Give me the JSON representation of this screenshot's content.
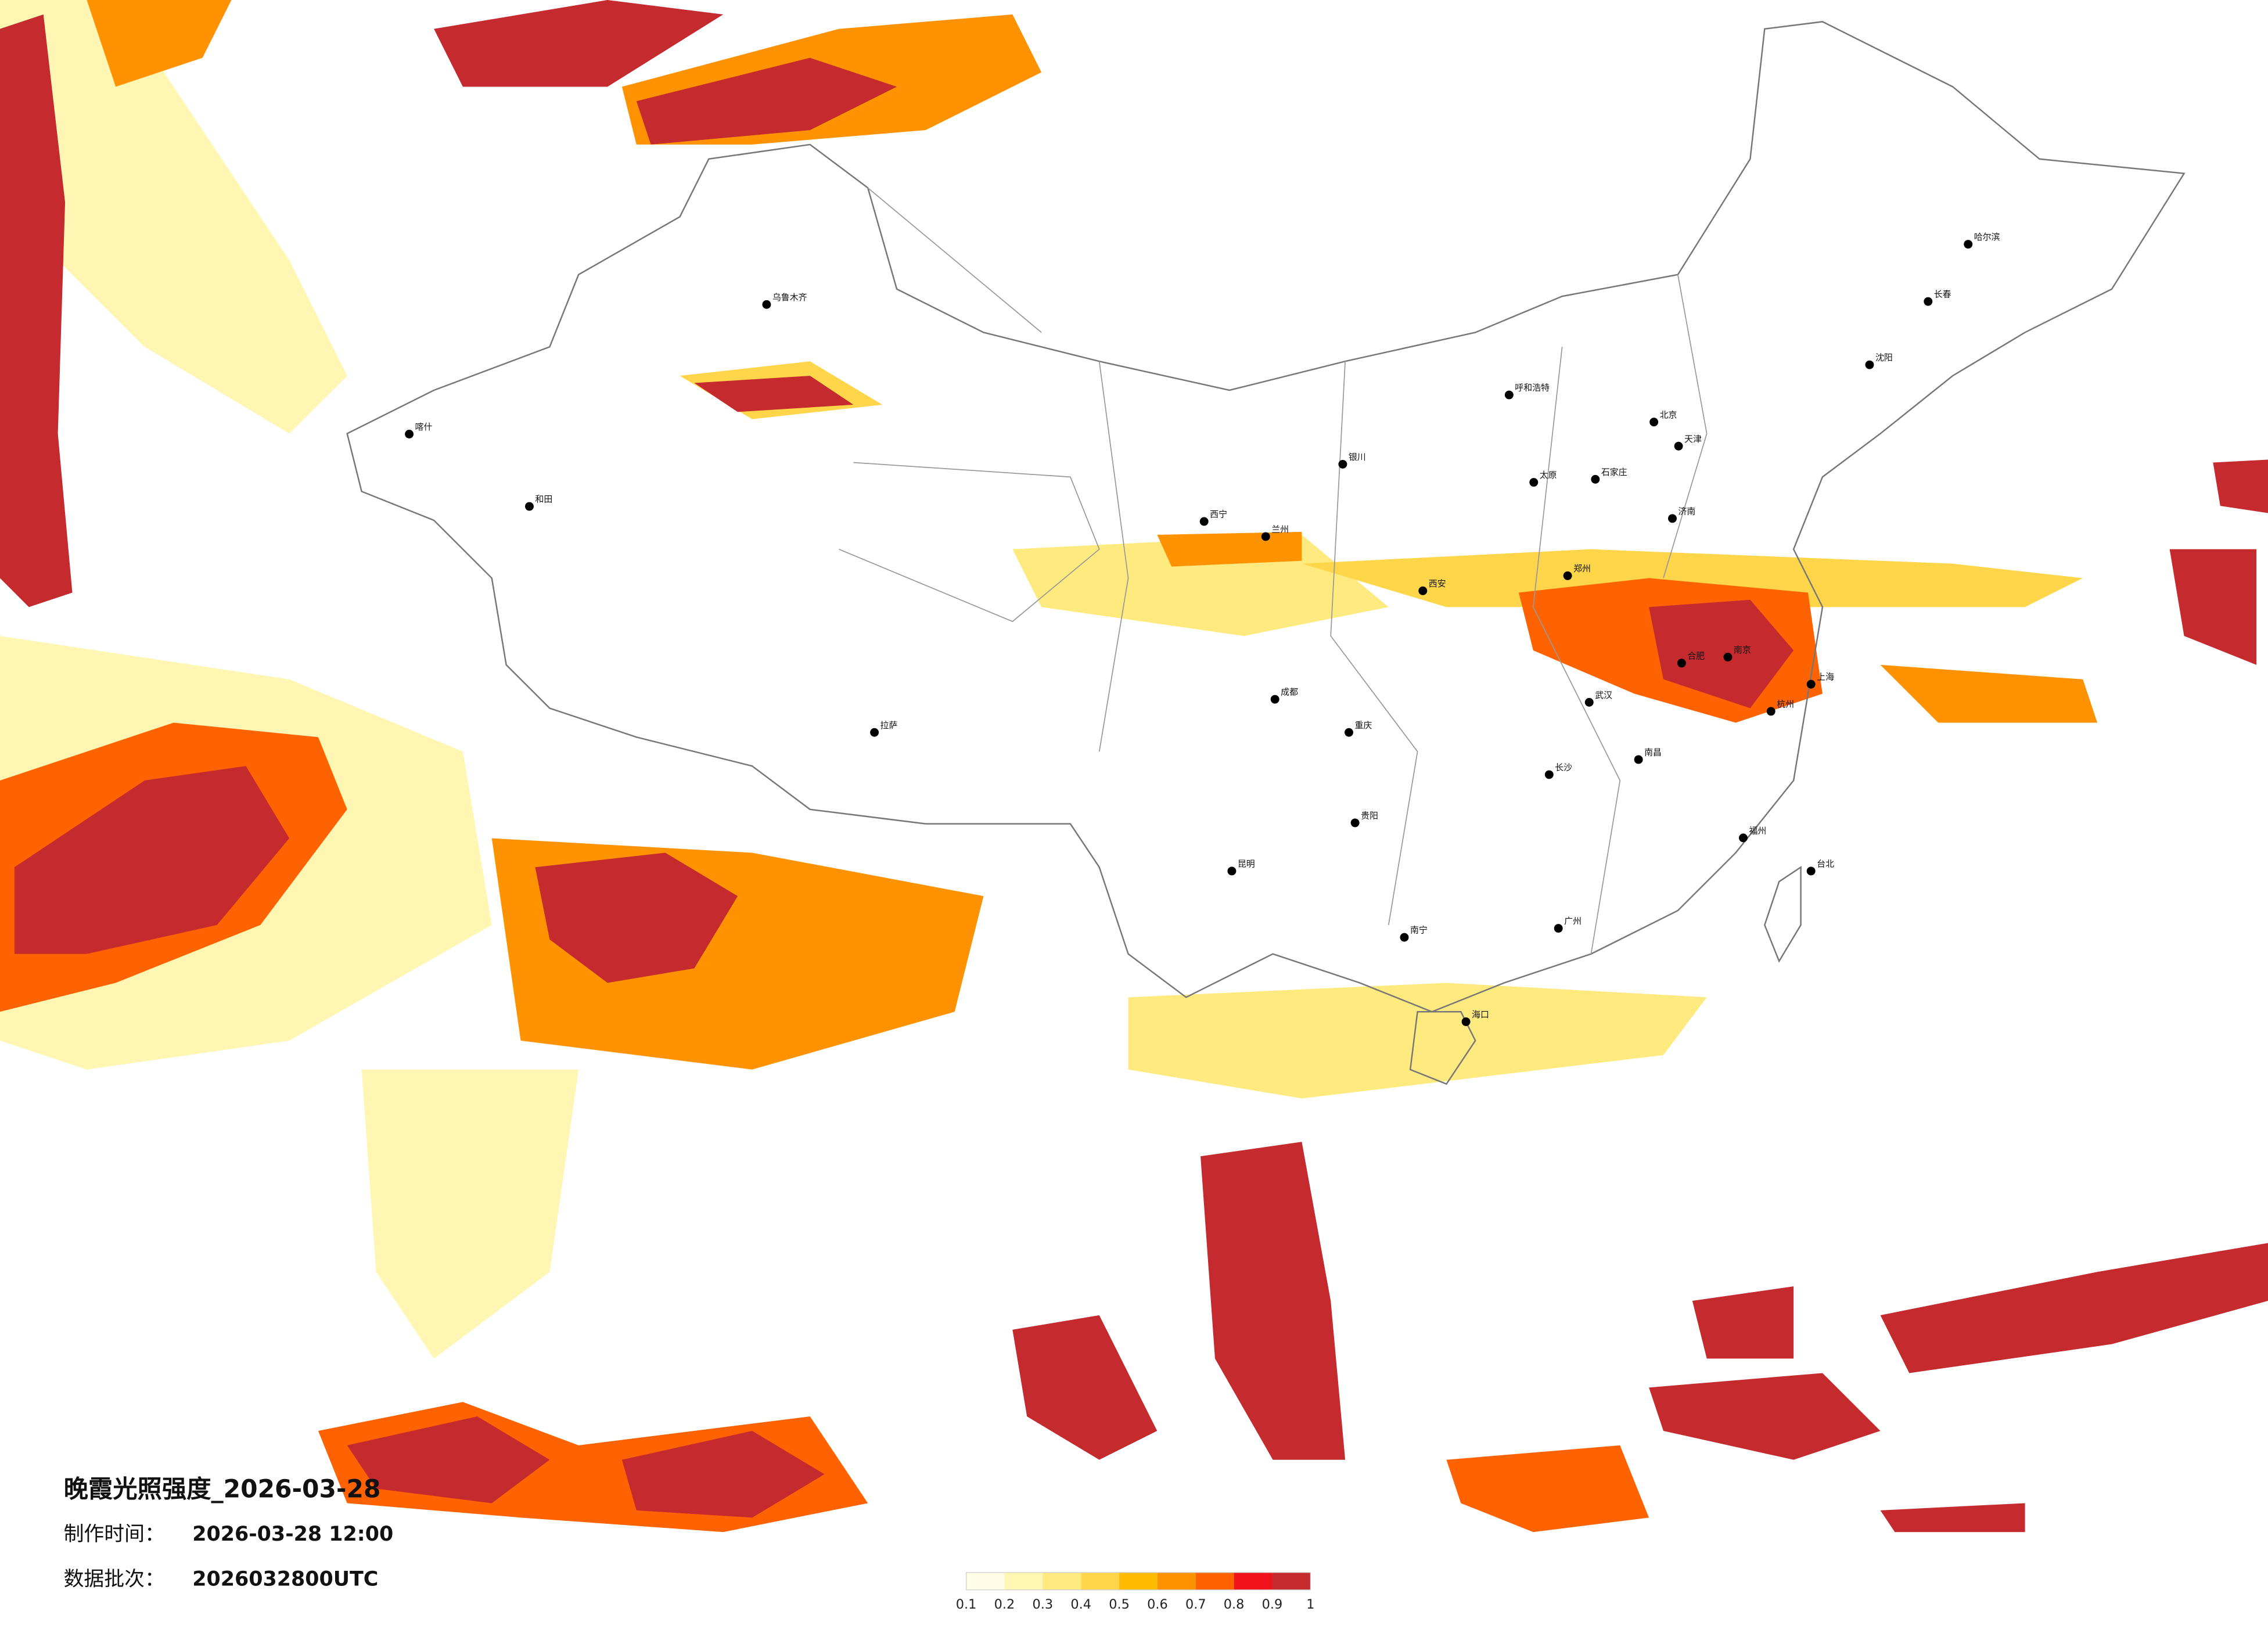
{
  "header": {
    "title": "晚霞光照强度_2026-03-28",
    "made_label": "制作时间：",
    "made_time": "2026-03-28 12:00",
    "batch_label": "数据批次：",
    "batch": "2026032800UTC"
  },
  "legend": {
    "ticks": [
      0.1,
      0.2,
      0.3,
      0.4,
      0.5,
      0.6,
      0.7,
      0.8,
      0.9,
      1
    ],
    "colors": [
      "#fffde6",
      "#fff6b3",
      "#ffea80",
      "#ffd54a",
      "#ffbb00",
      "#ff9200",
      "#ff6200",
      "#f0141a",
      "#c42a2e"
    ]
  },
  "cities": [
    {
      "name": "乌鲁木齐",
      "lon": 87.6,
      "lat": 43.8
    },
    {
      "name": "喀什",
      "lon": 76.0,
      "lat": 39.5
    },
    {
      "name": "和田",
      "lon": 79.9,
      "lat": 37.1
    },
    {
      "name": "拉萨",
      "lon": 91.1,
      "lat": 29.6
    },
    {
      "name": "西宁",
      "lon": 101.8,
      "lat": 36.6
    },
    {
      "name": "兰州",
      "lon": 103.8,
      "lat": 36.1
    },
    {
      "name": "银川",
      "lon": 106.3,
      "lat": 38.5
    },
    {
      "name": "呼和浩特",
      "lon": 111.7,
      "lat": 40.8
    },
    {
      "name": "北京",
      "lon": 116.4,
      "lat": 39.9
    },
    {
      "name": "天津",
      "lon": 117.2,
      "lat": 39.1
    },
    {
      "name": "石家庄",
      "lon": 114.5,
      "lat": 38.0
    },
    {
      "name": "太原",
      "lon": 112.5,
      "lat": 37.9
    },
    {
      "name": "济南",
      "lon": 117.0,
      "lat": 36.7
    },
    {
      "name": "郑州",
      "lon": 113.6,
      "lat": 34.8
    },
    {
      "name": "西安",
      "lon": 108.9,
      "lat": 34.3
    },
    {
      "name": "成都",
      "lon": 104.1,
      "lat": 30.7
    },
    {
      "name": "重庆",
      "lon": 106.5,
      "lat": 29.6
    },
    {
      "name": "武汉",
      "lon": 114.3,
      "lat": 30.6
    },
    {
      "name": "合肥",
      "lon": 117.3,
      "lat": 31.9
    },
    {
      "name": "南京",
      "lon": 118.8,
      "lat": 32.1
    },
    {
      "name": "上海",
      "lon": 121.5,
      "lat": 31.2
    },
    {
      "name": "杭州",
      "lon": 120.2,
      "lat": 30.3
    },
    {
      "name": "南昌",
      "lon": 115.9,
      "lat": 28.7
    },
    {
      "name": "长沙",
      "lon": 113.0,
      "lat": 28.2
    },
    {
      "name": "福州",
      "lon": 119.3,
      "lat": 26.1
    },
    {
      "name": "贵阳",
      "lon": 106.7,
      "lat": 26.6
    },
    {
      "name": "昆明",
      "lon": 102.7,
      "lat": 25.0
    },
    {
      "name": "南宁",
      "lon": 108.3,
      "lat": 22.8
    },
    {
      "name": "广州",
      "lon": 113.3,
      "lat": 23.1
    },
    {
      "name": "海口",
      "lon": 110.3,
      "lat": 20.0
    },
    {
      "name": "台北",
      "lon": 121.5,
      "lat": 25.0
    },
    {
      "name": "沈阳",
      "lon": 123.4,
      "lat": 41.8
    },
    {
      "name": "长春",
      "lon": 125.3,
      "lat": 43.9
    },
    {
      "name": "哈尔滨",
      "lon": 126.6,
      "lat": 45.8
    }
  ]
}
